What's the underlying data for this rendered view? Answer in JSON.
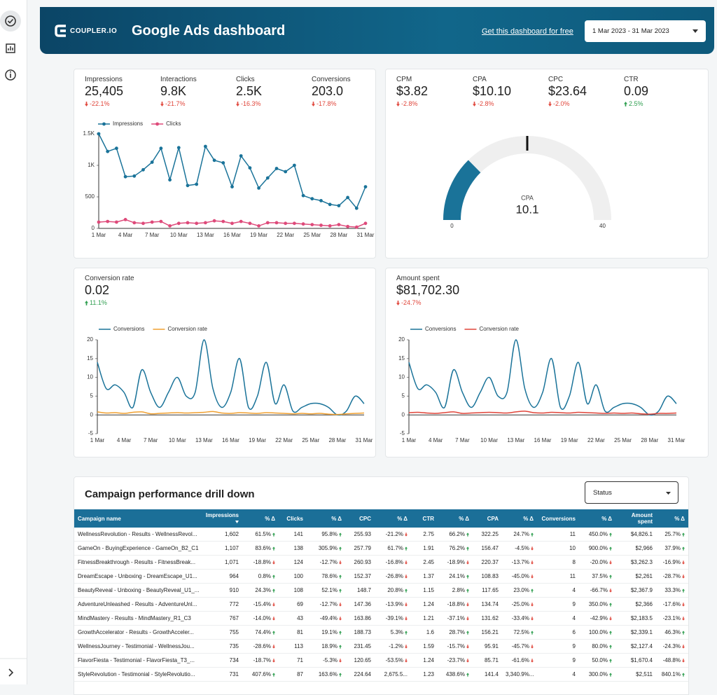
{
  "header": {
    "brand": "COUPLER.IO",
    "title": "Google Ads dashboard",
    "link": "Get this dashboard for free",
    "date_range": "1 Mar 2023 - 31 Mar 2023"
  },
  "scorecards": [
    {
      "label": "Impressions",
      "value": "25,405",
      "change": "-22.1%"
    },
    {
      "label": "Interactions",
      "value": "9.8K",
      "change": "-21.7%"
    },
    {
      "label": "Clicks",
      "value": "2.5K",
      "change": "-16.3%"
    },
    {
      "label": "Conversions",
      "value": "203.0",
      "change": "-17.8%"
    },
    {
      "label": "CPM",
      "value": "$3.82",
      "change": "-2.8%"
    },
    {
      "label": "CPA",
      "value": "$10.10",
      "change": "-2.8%"
    },
    {
      "label": "CPC",
      "value": "$23.64",
      "change": "-2.0%"
    },
    {
      "label": "CTR",
      "value": "0.09",
      "change": "2.5%"
    },
    {
      "label": "Conversion rate",
      "value": "0.02",
      "change": "11.1%"
    },
    {
      "label": "Amount spent",
      "value": "$81,702.30",
      "change": "-24.7%"
    }
  ],
  "chart_data": [
    {
      "type": "line",
      "markers": true,
      "smooth": false,
      "categories": [
        "1 Mar",
        null,
        null,
        "4 Mar",
        null,
        null,
        "7 Mar",
        null,
        null,
        "10 Mar",
        null,
        null,
        "13 Mar",
        null,
        null,
        "16 Mar",
        null,
        null,
        "19 Mar",
        null,
        null,
        "22 Mar",
        null,
        null,
        "25 Mar",
        null,
        null,
        "28 Mar",
        null,
        null,
        "31 Mar"
      ],
      "series": [
        {
          "name": "Impressions",
          "color": "#1a7399",
          "values": [
            1500,
            1220,
            1270,
            820,
            830,
            930,
            1050,
            1270,
            770,
            1280,
            680,
            700,
            1300,
            1080,
            1040,
            660,
            1150,
            960,
            640,
            800,
            950,
            900,
            1000,
            520,
            470,
            440,
            380,
            360,
            490,
            320,
            660
          ]
        },
        {
          "name": "Clicks",
          "color": "#de4a7a",
          "values": [
            100,
            110,
            100,
            140,
            90,
            80,
            100,
            110,
            40,
            80,
            90,
            80,
            90,
            120,
            110,
            80,
            110,
            80,
            40,
            90,
            90,
            80,
            80,
            70,
            60,
            50,
            40,
            60,
            30,
            20,
            80
          ]
        }
      ],
      "ylim": [
        0,
        1500
      ],
      "yticks": [
        0,
        500,
        {
          "value": 1000,
          "label": "1K"
        },
        {
          "value": 1500,
          "label": "1.5K"
        }
      ]
    },
    {
      "type": "gauge",
      "label": "CPA",
      "value": 10.1,
      "min": 0,
      "max": 40,
      "target": 20,
      "color": "#1a7399"
    },
    {
      "type": "line",
      "markers": false,
      "smooth": true,
      "categories": [
        "1 Mar",
        null,
        null,
        "4 Mar",
        null,
        null,
        "7 Mar",
        null,
        null,
        "10 Mar",
        null,
        null,
        "13 Mar",
        null,
        null,
        "16 Mar",
        null,
        null,
        "19 Mar",
        null,
        null,
        "22 Mar",
        null,
        null,
        "25 Mar",
        null,
        null,
        "28 Mar",
        null,
        null,
        "31 Mar"
      ],
      "series": [
        {
          "name": "Conversions",
          "color": "#1a7399",
          "values": [
            14,
            7,
            8,
            6,
            2,
            12,
            6,
            2,
            6,
            10,
            5,
            6,
            20,
            7,
            2,
            6,
            15,
            2,
            5,
            14,
            3,
            8,
            1,
            2,
            3,
            3,
            2,
            0,
            1,
            5,
            3
          ]
        },
        {
          "name": "Conversion rate",
          "color": "#f0a030",
          "values": [
            0.8,
            0.5,
            0.6,
            0.4,
            0.7,
            0.8,
            0.3,
            0.4,
            0.5,
            0.6,
            0.5,
            0.6,
            0.7,
            0.9,
            0.5,
            0.4,
            0.6,
            0.5,
            0.4,
            0.6,
            0.5,
            0.4,
            0.3,
            0.4,
            0.3,
            0.4,
            0.2,
            0.1,
            0.3,
            0.4,
            0.5
          ]
        }
      ],
      "ylim": [
        -5,
        20
      ],
      "yticks": [
        -5,
        0,
        5,
        10,
        15,
        20
      ]
    },
    {
      "type": "line",
      "markers": false,
      "smooth": true,
      "categories": [
        "1 Mar",
        null,
        null,
        "4 Mar",
        null,
        null,
        "7 Mar",
        null,
        null,
        "10 Mar",
        null,
        null,
        "13 Mar",
        null,
        null,
        "16 Mar",
        null,
        null,
        "19 Mar",
        null,
        null,
        "22 Mar",
        null,
        null,
        "25 Mar",
        null,
        null,
        "28 Mar",
        null,
        null,
        "31 Mar"
      ],
      "series": [
        {
          "name": "Conversions",
          "color": "#1a7399",
          "values": [
            14,
            7,
            8,
            6,
            2,
            12,
            6,
            2,
            6,
            10,
            5,
            6,
            20,
            7,
            2,
            6,
            15,
            2,
            5,
            14,
            3,
            8,
            1,
            2,
            3,
            3,
            2,
            0,
            1,
            5,
            3
          ]
        },
        {
          "name": "Conversion rate",
          "color": "#e0453a",
          "values": [
            0.6,
            0.7,
            0.5,
            0.4,
            0.6,
            0.8,
            0.4,
            0.5,
            0.6,
            0.7,
            0.6,
            0.5,
            0.8,
            1.0,
            0.6,
            0.5,
            0.7,
            0.6,
            0.5,
            0.7,
            0.6,
            0.5,
            0.4,
            0.5,
            0.4,
            0.5,
            0.3,
            0.2,
            0.4,
            0.4,
            0.5
          ]
        }
      ],
      "ylim": [
        -5,
        20
      ],
      "yticks": [
        -5,
        0,
        5,
        10,
        15,
        20
      ]
    }
  ],
  "table": {
    "title": "Campaign performance drill down",
    "filter": "Status",
    "sort_column": 1,
    "columns": [
      "Campaign name",
      "Impressions",
      "% Δ",
      "Clicks",
      "% Δ",
      "CPC",
      "% Δ",
      "CTR",
      "% Δ",
      "CPA",
      "% Δ",
      "Conversions",
      "% Δ",
      "Amount spent",
      "% Δ"
    ],
    "rows": [
      [
        "WellnessRevolution - Results - WellnessRevol...",
        "1,602",
        "61.5%",
        "141",
        "95.8%",
        "255.93",
        "-21.2%",
        "2.75",
        "66.2%",
        "322.25",
        "24.7%",
        "11",
        "450.0%",
        "$4,826.1",
        "25.7%"
      ],
      [
        "GameOn - BuyingExperience - GameOn_B2_C1",
        "1,107",
        "83.6%",
        "138",
        "305.9%",
        "257.79",
        "61.7%",
        "1.91",
        "76.2%",
        "156.47",
        "-4.5%",
        "10",
        "900.0%",
        "$2,966",
        "37.9%"
      ],
      [
        "FitnessBreakthrough - Results - FitnessBreak...",
        "1,071",
        "-18.8%",
        "124",
        "-12.7%",
        "260.93",
        "-16.8%",
        "2.45",
        "-18.9%",
        "220.37",
        "-13.7%",
        "8",
        "-20.0%",
        "$3,262.3",
        "-16.9%"
      ],
      [
        "DreamEscape - Unboxing - DreamEscape_U1...",
        "964",
        "0.8%",
        "100",
        "78.6%",
        "152.37",
        "-26.8%",
        "1.37",
        "24.1%",
        "108.83",
        "-45.0%",
        "11",
        "37.5%",
        "$2,261",
        "-28.7%"
      ],
      [
        "BeautyReveal - Unboxing - BeautyReveal_U1_...",
        "910",
        "24.3%",
        "108",
        "52.1%",
        "148.7",
        "20.8%",
        "1.15",
        "2.8%",
        "117.65",
        "23.0%",
        "4",
        "-66.7%",
        "$2,367.9",
        "33.3%"
      ],
      [
        "AdventureUnleashed - Results - AdventureUnl...",
        "772",
        "-15.4%",
        "69",
        "-12.7%",
        "147.36",
        "-13.9%",
        "1.24",
        "-18.8%",
        "134.74",
        "-25.0%",
        "9",
        "350.0%",
        "$2,366",
        "-17.6%"
      ],
      [
        "MindMastery - Results - MindMastery_R1_C3",
        "767",
        "-14.0%",
        "43",
        "-49.4%",
        "163.86",
        "-39.1%",
        "1.21",
        "-37.1%",
        "131.62",
        "-33.4%",
        "4",
        "-42.9%",
        "$2,183.5",
        "-23.1%"
      ],
      [
        "GrowthAccelerator - Results - GrowthAcceler...",
        "755",
        "74.4%",
        "81",
        "19.1%",
        "188.73",
        "5.3%",
        "1.6",
        "28.7%",
        "156.21",
        "72.5%",
        "6",
        "100.0%",
        "$2,339.1",
        "46.3%"
      ],
      [
        "WellnessJourney - Testimonial - WellnessJou...",
        "735",
        "-28.6%",
        "113",
        "18.9%",
        "231.45",
        "-1.2%",
        "1.59",
        "-15.7%",
        "95.91",
        "-45.7%",
        "9",
        "80.0%",
        "$2,127.4",
        "-24.3%"
      ],
      [
        "FlavorFiesta - Testimonial - FlavorFiesta_T3_...",
        "734",
        "-18.7%",
        "71",
        "-5.3%",
        "120.65",
        "-53.5%",
        "1.24",
        "-23.7%",
        "85.71",
        "-61.6%",
        "9",
        "50.0%",
        "$1,670.4",
        "-48.8%"
      ],
      [
        "StyleRevolution - Testimonial - StyleRevolutio...",
        "731",
        "407.6%",
        "87",
        "163.6%",
        "224.64",
        "2,675.5...",
        "1.23",
        "438.6%",
        "141.4",
        "3,340.9%...",
        "4",
        "300.0%",
        "$2,511",
        "840.1%"
      ]
    ]
  }
}
